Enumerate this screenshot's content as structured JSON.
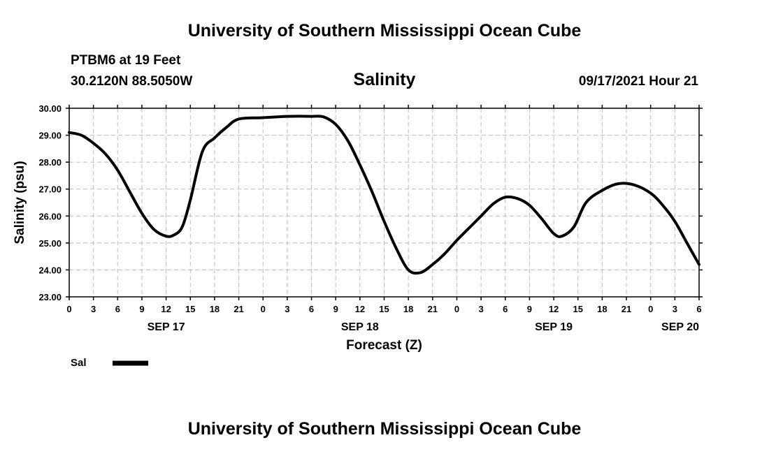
{
  "header": {
    "top_title": "University of Southern Mississippi Ocean Cube",
    "bottom_title": "University of Southern Mississippi Ocean Cube",
    "station": "PTBM6 at 19 Feet",
    "location": "30.2120N  88.5050W",
    "timestamp": "09/17/2021 Hour 21"
  },
  "chart_data": {
    "type": "line",
    "title": "Salinity",
    "xlabel": "Forecast (Z)",
    "ylabel": "Salinity (psu)",
    "ylim": [
      23.0,
      30.0
    ],
    "xlim": [
      0,
      78
    ],
    "grid": true,
    "y_ticks": [
      23.0,
      24.0,
      25.0,
      26.0,
      27.0,
      28.0,
      29.0,
      30.0
    ],
    "y_tick_labels": [
      "23.00",
      "24.00",
      "25.00",
      "26.00",
      "27.00",
      "28.00",
      "29.00",
      "30.00"
    ],
    "x_ticks": [
      0,
      3,
      6,
      9,
      12,
      15,
      18,
      21,
      24,
      27,
      30,
      33,
      36,
      39,
      42,
      45,
      48,
      51,
      54,
      57,
      60,
      63,
      66,
      69,
      72,
      75,
      78
    ],
    "x_tick_labels": [
      "0",
      "3",
      "6",
      "9",
      "12",
      "15",
      "18",
      "21",
      "0",
      "3",
      "6",
      "9",
      "12",
      "15",
      "18",
      "21",
      "0",
      "3",
      "6",
      "9",
      "12",
      "15",
      "18",
      "21",
      "0",
      "3",
      "6"
    ],
    "date_labels": [
      {
        "x": 12,
        "label": "SEP 17"
      },
      {
        "x": 36,
        "label": "SEP 18"
      },
      {
        "x": 60,
        "label": "SEP 19"
      },
      {
        "x": 78,
        "label": "SEP 20"
      }
    ],
    "legend": {
      "position": "bottom-left",
      "label": "Sal"
    },
    "series": [
      {
        "name": "Sal",
        "color": "#000000",
        "x": [
          0,
          1.5,
          3,
          4.5,
          6,
          7.5,
          9,
          10.5,
          12,
          13,
          14,
          15,
          16.5,
          18,
          19.5,
          21,
          24,
          27,
          30,
          31.5,
          33,
          34.5,
          36,
          37.5,
          39,
          40.5,
          42,
          43.5,
          45,
          46.5,
          48,
          49.5,
          51,
          52.5,
          54,
          55.5,
          57,
          58.5,
          60,
          61,
          62.5,
          64,
          66,
          68,
          70,
          72,
          73.5,
          75,
          76.5,
          78
        ],
        "y": [
          29.1,
          29.0,
          28.7,
          28.3,
          27.7,
          26.9,
          26.1,
          25.5,
          25.25,
          25.3,
          25.6,
          26.6,
          28.4,
          28.9,
          29.3,
          29.6,
          29.65,
          29.7,
          29.7,
          29.68,
          29.4,
          28.8,
          27.9,
          26.9,
          25.8,
          24.8,
          24.0,
          23.9,
          24.2,
          24.6,
          25.1,
          25.55,
          26.0,
          26.45,
          26.7,
          26.65,
          26.4,
          25.9,
          25.35,
          25.25,
          25.6,
          26.5,
          26.95,
          27.2,
          27.15,
          26.85,
          26.4,
          25.8,
          25.0,
          24.2
        ]
      }
    ]
  }
}
